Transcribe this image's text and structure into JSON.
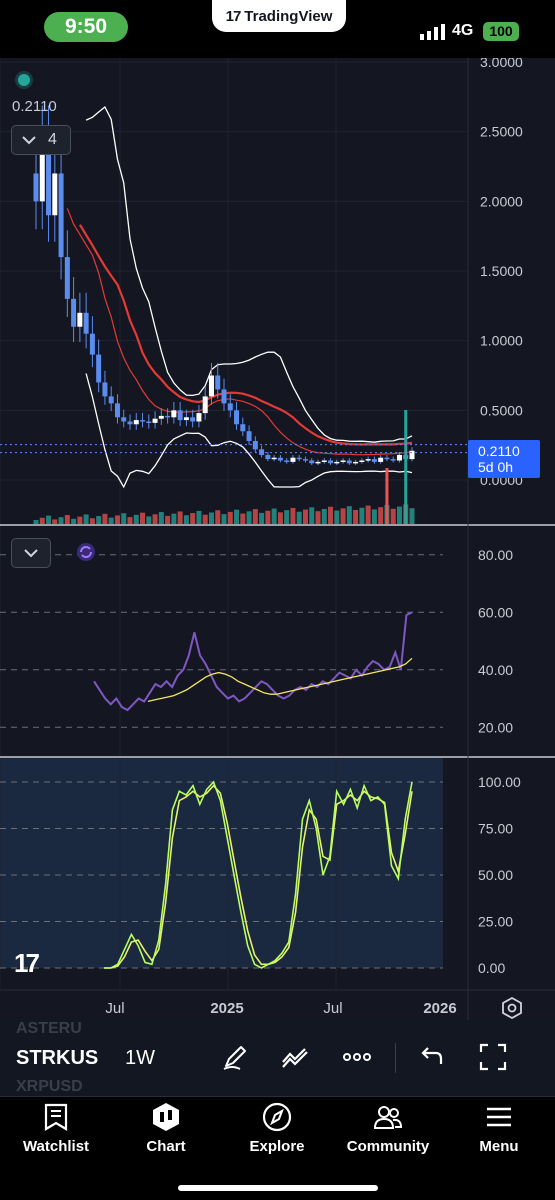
{
  "status": {
    "time": "9:50",
    "network": "4G",
    "battery": "100",
    "island_brand": "TradingView",
    "island_logo": "17"
  },
  "chart": {
    "current_price": "0.2110",
    "legend_count": "4",
    "price_tag": {
      "price": "0.2110",
      "countdown": "5d 0h"
    },
    "price_axis_ticks": [
      "3.0000",
      "2.5000",
      "2.0000",
      "1.5000",
      "1.0000",
      "0.5000",
      "0.0000"
    ],
    "rsi_axis_ticks": [
      "80.00",
      "60.00",
      "40.00",
      "20.00"
    ],
    "stoch_axis_ticks": [
      "100.00",
      "75.00",
      "50.00",
      "25.00",
      "0.00"
    ],
    "time_axis_ticks": [
      "Jul",
      "2025",
      "Jul",
      "2026"
    ],
    "watermark": "17",
    "colors": {
      "up": "#26a69a",
      "down": "#ef5350",
      "candle": "#5b8def",
      "ma": "#e53935",
      "bollinger": "#ffffff",
      "rsi": "#7e57c2",
      "rsi_ma": "#f5e663",
      "stoch_k": "#b7ff5a",
      "stoch_d": "#e6f26b",
      "price_tag": "#2962ff"
    }
  },
  "toolbar": {
    "symbol": "STRKUS",
    "interval": "1W",
    "ghost_symbol_top": "ASTERU",
    "ghost_symbol_bottom": "XRPUSD",
    "icons": [
      "draw-icon",
      "indicators-icon",
      "more-icon",
      "undo-icon",
      "fullscreen-icon"
    ]
  },
  "nav": {
    "items": [
      {
        "label": "Watchlist",
        "icon": "watchlist-icon"
      },
      {
        "label": "Chart",
        "icon": "chart-icon"
      },
      {
        "label": "Explore",
        "icon": "compass-icon"
      },
      {
        "label": "Community",
        "icon": "community-icon"
      },
      {
        "label": "Menu",
        "icon": "menu-icon"
      }
    ]
  },
  "chart_data": [
    {
      "type": "candlestick",
      "title": "",
      "interval": "1W",
      "ylim": [
        0,
        3
      ],
      "y_ticks": [
        0,
        0.5,
        1,
        1.5,
        2,
        2.5,
        3
      ],
      "x_ticks": [
        "Jul",
        "2025",
        "Jul",
        "2026"
      ],
      "last_price": 0.211,
      "close_series_approx": [
        2.0,
        2.4,
        1.9,
        2.2,
        1.6,
        1.3,
        1.1,
        1.2,
        1.05,
        0.9,
        0.7,
        0.6,
        0.55,
        0.45,
        0.42,
        0.4,
        0.43,
        0.42,
        0.41,
        0.44,
        0.46,
        0.45,
        0.5,
        0.43,
        0.45,
        0.42,
        0.48,
        0.6,
        0.75,
        0.65,
        0.55,
        0.5,
        0.4,
        0.35,
        0.28,
        0.22,
        0.18,
        0.15,
        0.16,
        0.14,
        0.13,
        0.16,
        0.15,
        0.14,
        0.12,
        0.13,
        0.14,
        0.12,
        0.13,
        0.14,
        0.12,
        0.13,
        0.14,
        0.15,
        0.13,
        0.16,
        0.15,
        0.14,
        0.18,
        0.15,
        0.21
      ],
      "legend": "none"
    },
    {
      "type": "line",
      "title": "",
      "ylim": [
        10,
        90
      ],
      "y_ticks": [
        20,
        40,
        60,
        80
      ],
      "series": [
        {
          "values": [
            36,
            33,
            30,
            28,
            30,
            27,
            26,
            28,
            30,
            29,
            32,
            35,
            34,
            36,
            34,
            38,
            40,
            45,
            53,
            45,
            42,
            38,
            34,
            32,
            30,
            31,
            29,
            30,
            32,
            34,
            36,
            35,
            33,
            31,
            30,
            31,
            33,
            34,
            33,
            35,
            34,
            36,
            35,
            37,
            39,
            38,
            37,
            40,
            38,
            41,
            43,
            42,
            40,
            41,
            46,
            40,
            59,
            60
          ]
        },
        {
          "values": [
            29,
            29.5,
            30,
            30.5,
            31,
            32,
            33,
            34.5,
            36,
            37.5,
            38.5,
            39,
            38.5,
            37.5,
            36,
            35,
            34,
            33,
            32,
            31.5,
            31.5,
            32,
            32.5,
            33,
            33.5,
            34,
            34.5,
            35,
            35.5,
            36,
            36.5,
            37,
            37.5,
            38,
            38.5,
            39,
            39.5,
            40,
            40.5,
            41,
            42,
            44
          ]
        }
      ]
    },
    {
      "type": "line",
      "title": "",
      "ylim": [
        0,
        100
      ],
      "y_ticks": [
        0,
        25,
        50,
        75,
        100
      ],
      "series": [
        {
          "values": [
            0,
            0,
            2,
            10,
            18,
            12,
            3,
            2,
            15,
            45,
            85,
            95,
            93,
            98,
            88,
            96,
            100,
            90,
            70,
            50,
            30,
            12,
            2,
            0,
            2,
            4,
            8,
            14,
            40,
            80,
            90,
            75,
            50,
            60,
            95,
            88,
            96,
            86,
            98,
            90,
            92,
            88,
            55,
            48,
            80,
            100
          ]
        },
        {
          "values": [
            0,
            0,
            1,
            6,
            14,
            15,
            9,
            4,
            10,
            35,
            70,
            90,
            92,
            95,
            92,
            94,
            98,
            94,
            78,
            58,
            38,
            20,
            7,
            2,
            2,
            3,
            6,
            11,
            30,
            65,
            85,
            80,
            60,
            58,
            88,
            90,
            93,
            90,
            95,
            92,
            91,
            89,
            62,
            52,
            72,
            95
          ]
        }
      ]
    }
  ]
}
